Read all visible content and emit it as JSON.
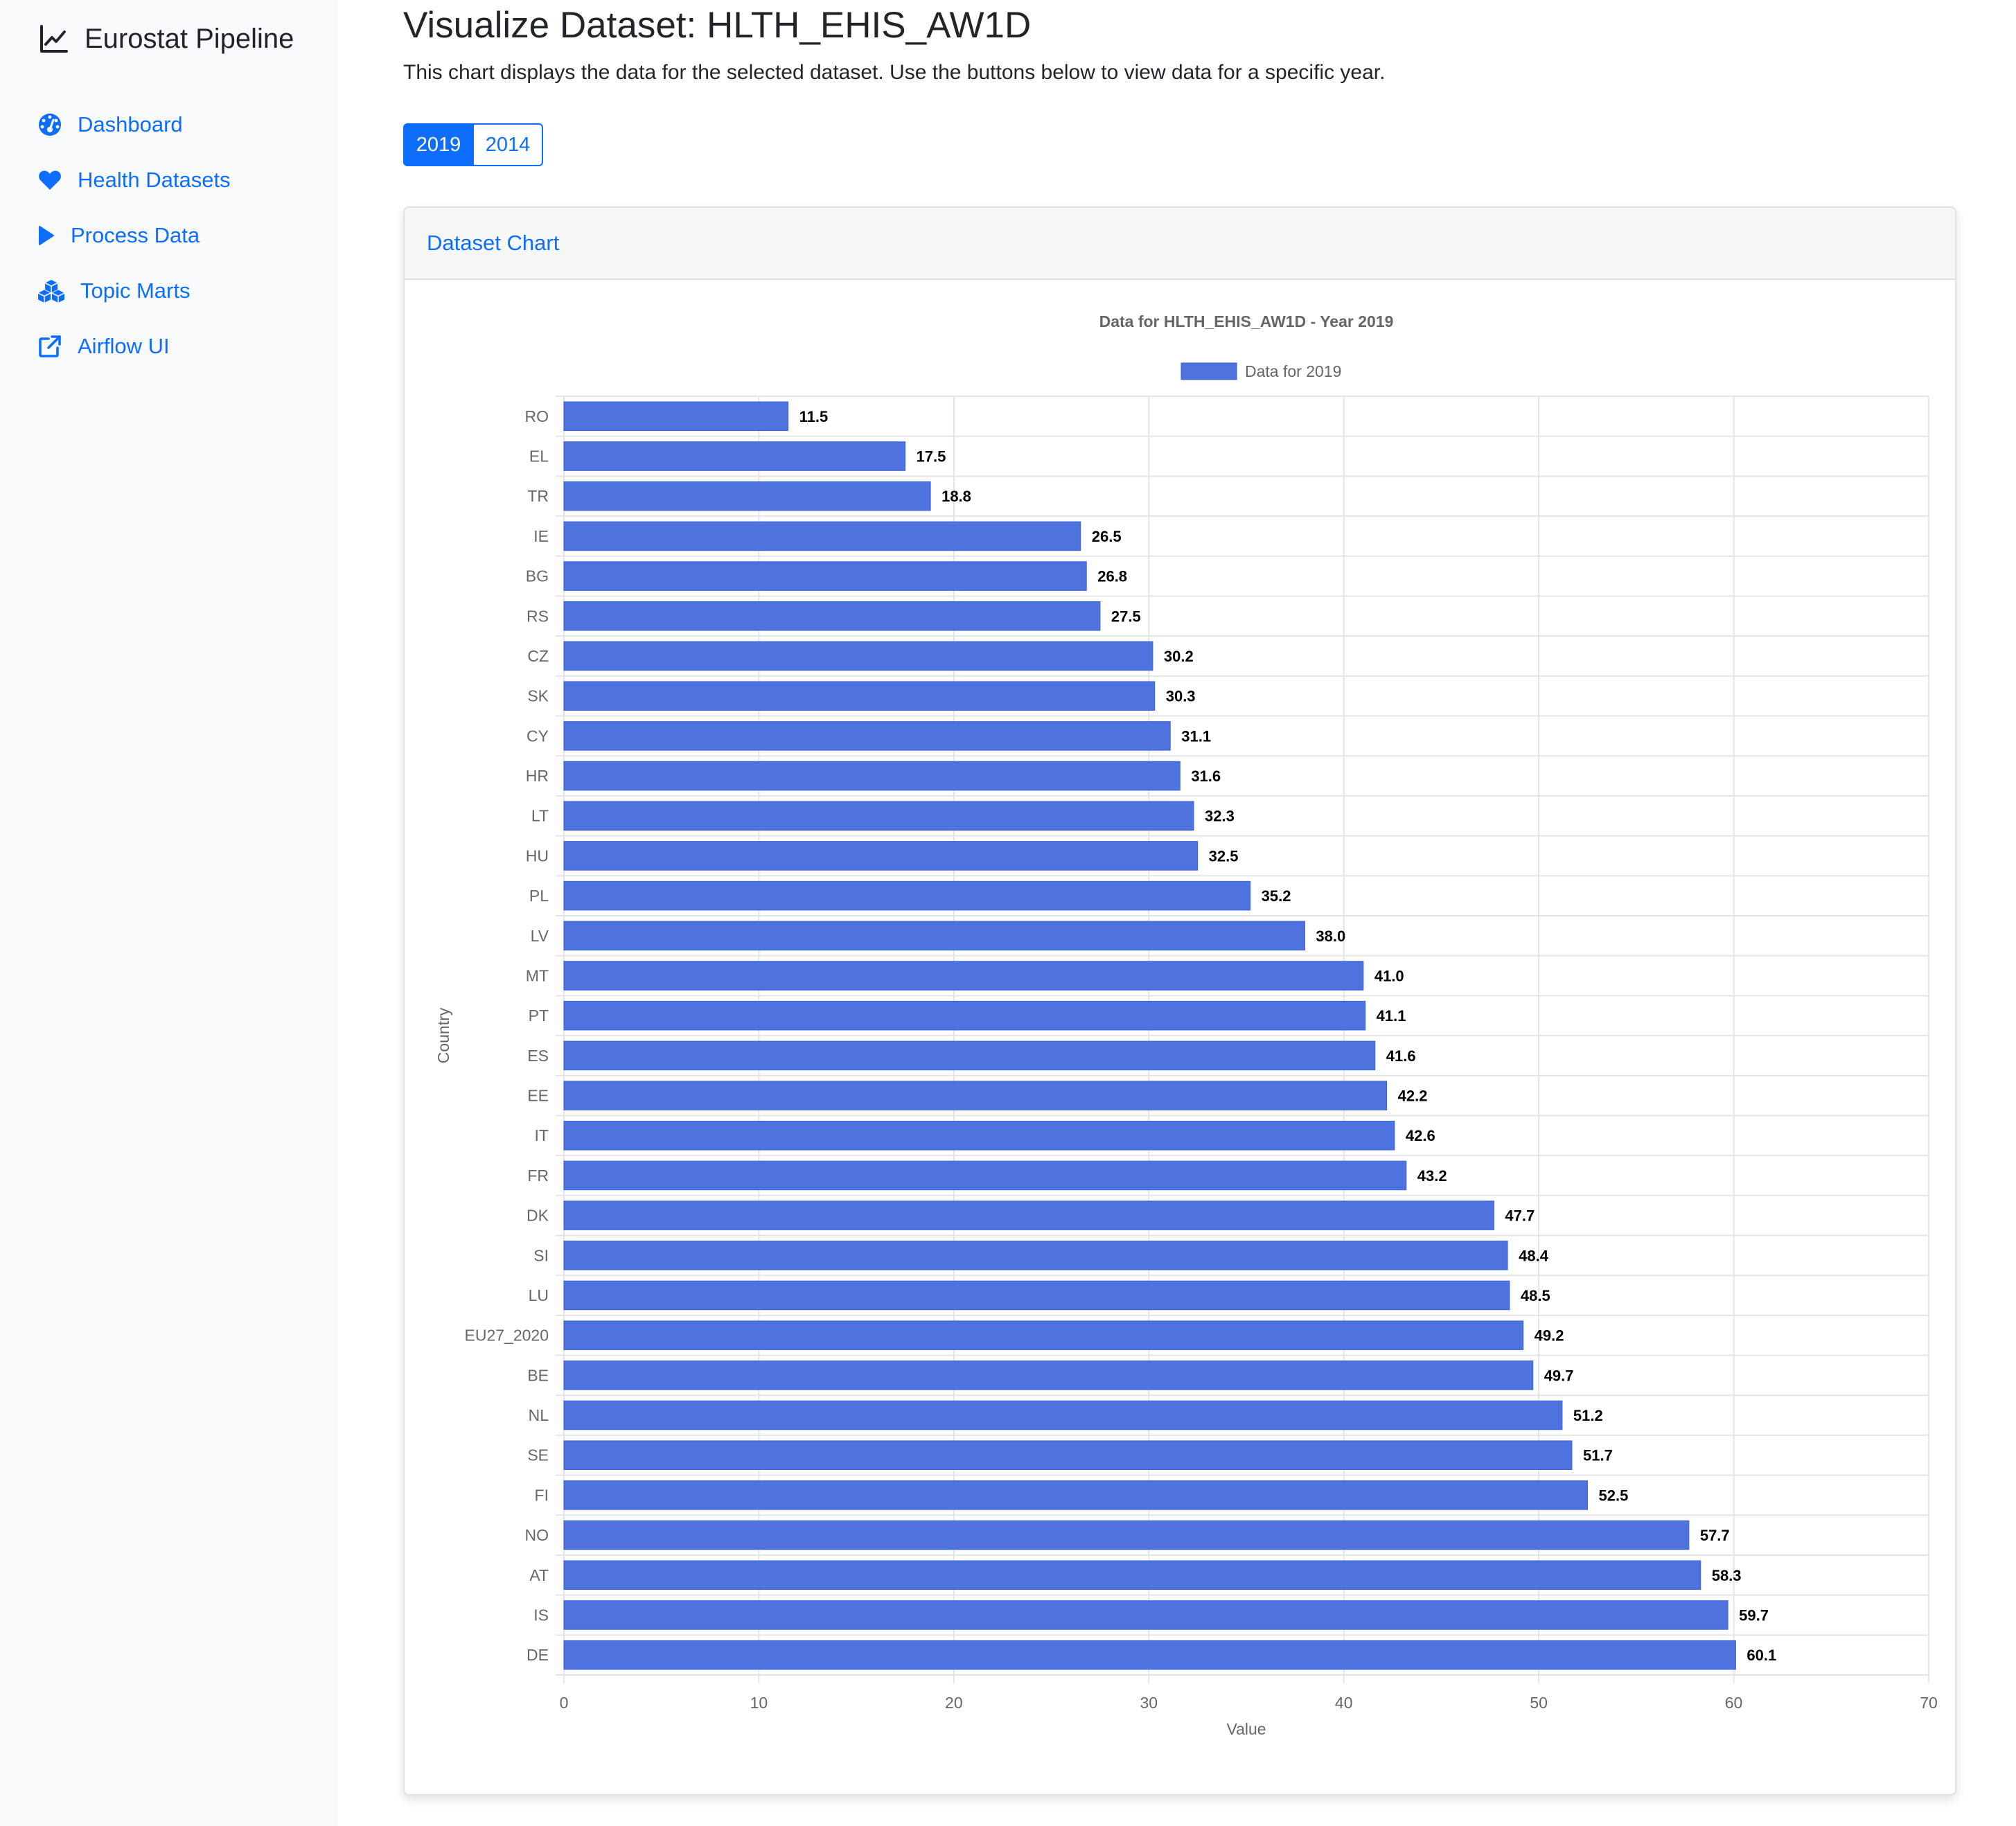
{
  "sidebar": {
    "brand": "Eurostat Pipeline",
    "brand_icon": "line-chart-icon",
    "items": [
      {
        "label": "Dashboard",
        "icon": "dashboard-gauge-icon"
      },
      {
        "label": "Health Datasets",
        "icon": "heart-icon"
      },
      {
        "label": "Process Data",
        "icon": "play-icon"
      },
      {
        "label": "Topic Marts",
        "icon": "cubes-icon"
      },
      {
        "label": "Airflow UI",
        "icon": "external-link-icon"
      }
    ]
  },
  "main": {
    "title": "Visualize Dataset: HLTH_EHIS_AW1D",
    "description": "This chart displays the data for the selected dataset. Use the buttons below to view data for a specific year.",
    "year_buttons": [
      {
        "label": "2019",
        "active": true
      },
      {
        "label": "2014",
        "active": false
      }
    ],
    "card_title": "Dataset Chart"
  },
  "colors": {
    "accent": "#0d6efd",
    "bar": "#4e73df"
  },
  "chart_data": {
    "type": "bar",
    "orientation": "horizontal",
    "title": "Data for HLTH_EHIS_AW1D - Year 2019",
    "xlabel": "Value",
    "ylabel": "Country",
    "xlim": [
      0,
      70
    ],
    "xticks": [
      0,
      10,
      20,
      30,
      40,
      50,
      60,
      70
    ],
    "grid": true,
    "legend_position": "top",
    "series": [
      {
        "name": "Data for 2019",
        "color": "#4e73df",
        "values": [
          11.5,
          17.5,
          18.8,
          26.5,
          26.8,
          27.5,
          30.2,
          30.3,
          31.1,
          31.6,
          32.3,
          32.5,
          35.2,
          38.0,
          41.0,
          41.1,
          41.6,
          42.2,
          42.6,
          43.2,
          47.7,
          48.4,
          48.5,
          49.2,
          49.7,
          51.2,
          51.7,
          52.5,
          57.7,
          58.3,
          59.7,
          60.1
        ],
        "value_labels": [
          "11.5",
          "17.5",
          "18.8",
          "26.5",
          "26.8",
          "27.5",
          "30.2",
          "30.3",
          "31.1",
          "31.6",
          "32.3",
          "32.5",
          "35.2",
          "38.0",
          "41.0",
          "41.1",
          "41.6",
          "42.2",
          "42.6",
          "43.2",
          "47.7",
          "48.4",
          "48.5",
          "49.2",
          "49.7",
          "51.2",
          "51.7",
          "52.5",
          "57.7",
          "58.3",
          "59.7",
          "60.1"
        ]
      }
    ],
    "categories": [
      "RO",
      "EL",
      "TR",
      "IE",
      "BG",
      "RS",
      "CZ",
      "SK",
      "CY",
      "HR",
      "LT",
      "HU",
      "PL",
      "LV",
      "MT",
      "PT",
      "ES",
      "EE",
      "IT",
      "FR",
      "DK",
      "SI",
      "LU",
      "EU27_2020",
      "BE",
      "NL",
      "SE",
      "FI",
      "NO",
      "AT",
      "IS",
      "DE"
    ]
  }
}
